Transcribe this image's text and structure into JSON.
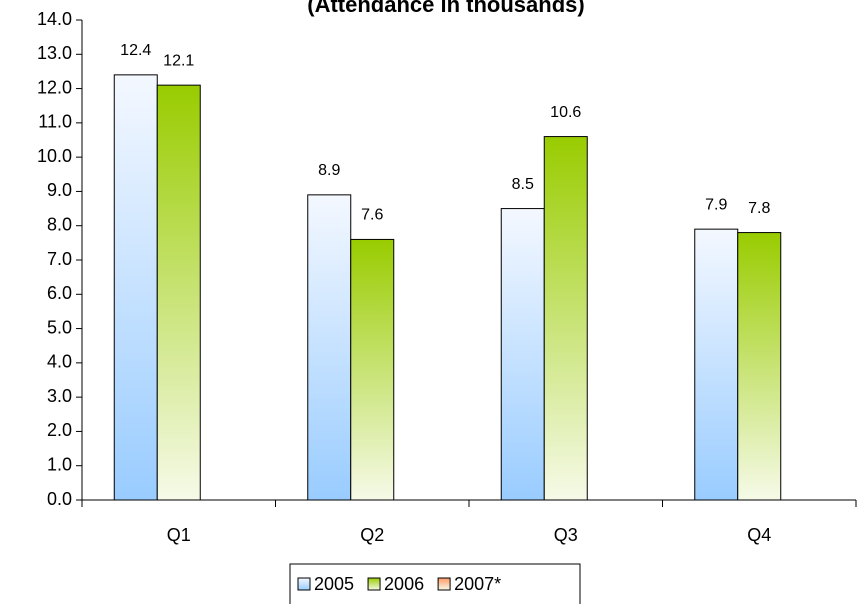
{
  "chart_data": {
    "type": "bar",
    "title": "(Attendance in thousands)",
    "categories": [
      "Q1",
      "Q2",
      "Q3",
      "Q4"
    ],
    "series": [
      {
        "name": "2005",
        "color": "#99ccff",
        "values": [
          12.4,
          8.9,
          8.5,
          7.9
        ]
      },
      {
        "name": "2006",
        "color": "#99cc00",
        "values": [
          12.1,
          7.6,
          10.6,
          7.8
        ]
      },
      {
        "name": "2007*",
        "color": "#ff9966",
        "values": [
          null,
          null,
          null,
          null
        ]
      }
    ],
    "ylim": [
      0,
      14
    ],
    "yticks": [
      {
        "value": 0,
        "label": "0.0"
      },
      {
        "value": 1,
        "label": "1.0"
      },
      {
        "value": 2,
        "label": "2.0"
      },
      {
        "value": 3,
        "label": "3.0"
      },
      {
        "value": 4,
        "label": "4.0"
      },
      {
        "value": 5,
        "label": "5.0"
      },
      {
        "value": 6,
        "label": "6.0"
      },
      {
        "value": 7,
        "label": "7.0"
      },
      {
        "value": 8,
        "label": "8.0"
      },
      {
        "value": 9,
        "label": "9.0"
      },
      {
        "value": 10,
        "label": "10.0"
      },
      {
        "value": 11,
        "label": "11.0"
      },
      {
        "value": 12,
        "label": "12.0"
      },
      {
        "value": 13,
        "label": "13.0"
      },
      {
        "value": 14,
        "label": "14.0"
      }
    ],
    "grid": false,
    "legend": "bottom"
  }
}
